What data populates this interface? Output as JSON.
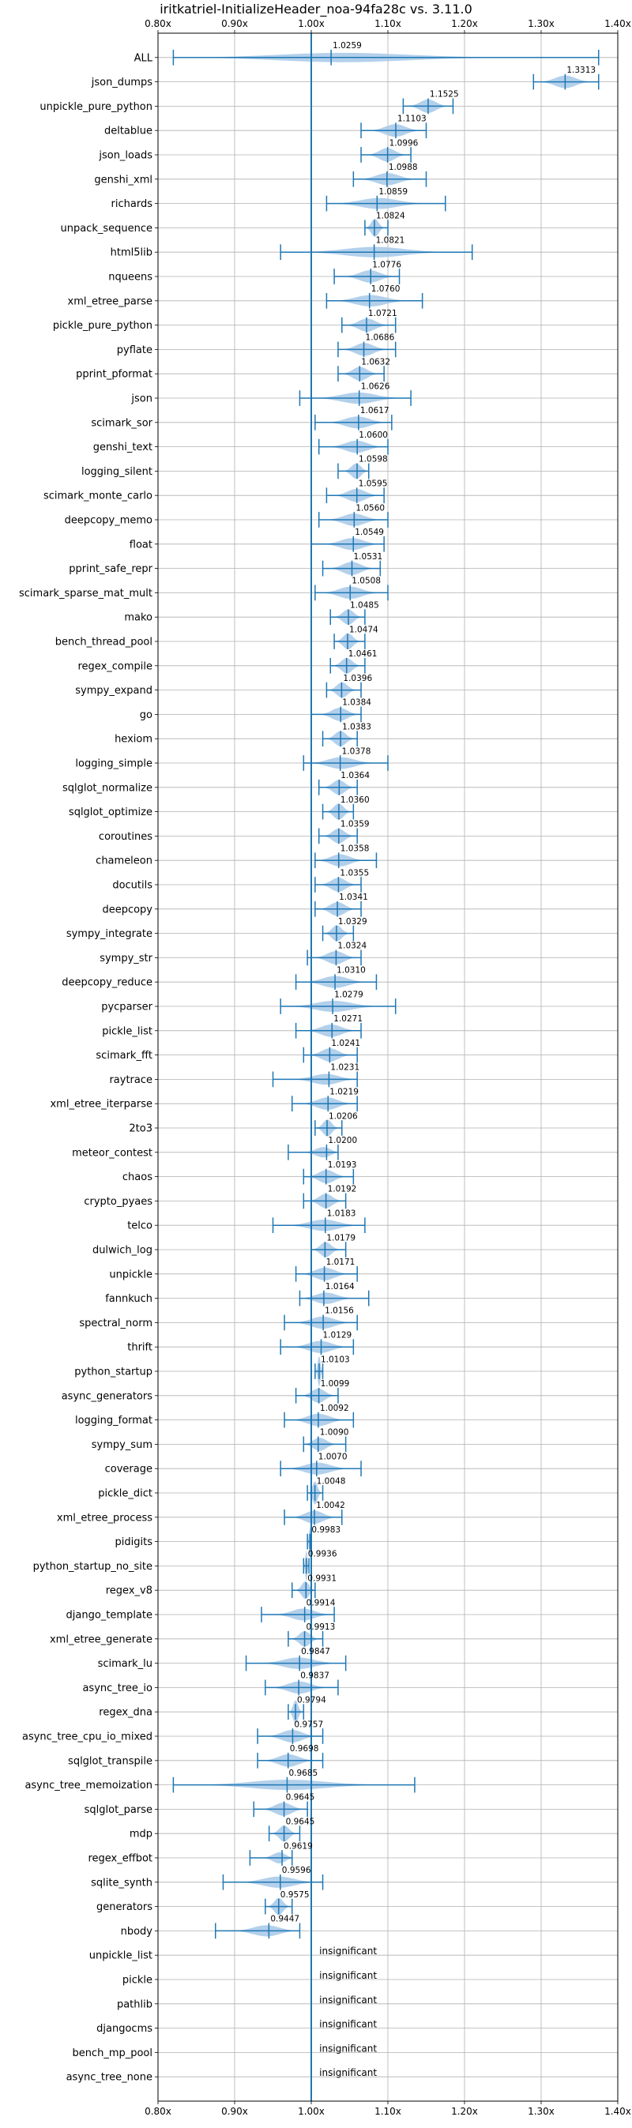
{
  "chart_data": {
    "type": "violin",
    "title": "iritkatriel-InitializeHeader_noa-94fa28c vs. 3.11.0",
    "xlim": [
      0.8,
      1.4
    ],
    "x_ticks": [
      "0.80x",
      "0.90x",
      "1.00x",
      "1.10x",
      "1.20x",
      "1.30x",
      "1.40x"
    ],
    "x_tick_values": [
      0.8,
      0.9,
      1.0,
      1.1,
      1.2,
      1.3,
      1.4
    ],
    "baseline": 1.0,
    "grid": true,
    "accent_color": "#1f77b4",
    "violin_fill": "#a6c8e8",
    "benchmarks": [
      {
        "name": "ALL",
        "label": "1.0259",
        "mean": 1.0259,
        "min": 0.82,
        "max": 1.375
      },
      {
        "name": "json_dumps",
        "label": "1.3313",
        "mean": 1.3313,
        "min": 1.29,
        "max": 1.375
      },
      {
        "name": "unpickle_pure_python",
        "label": "1.1525",
        "mean": 1.1525,
        "min": 1.12,
        "max": 1.185
      },
      {
        "name": "deltablue",
        "label": "1.1103",
        "mean": 1.1103,
        "min": 1.065,
        "max": 1.15
      },
      {
        "name": "json_loads",
        "label": "1.0996",
        "mean": 1.0996,
        "min": 1.065,
        "max": 1.13
      },
      {
        "name": "genshi_xml",
        "label": "1.0988",
        "mean": 1.0988,
        "min": 1.055,
        "max": 1.15
      },
      {
        "name": "richards",
        "label": "1.0859",
        "mean": 1.0859,
        "min": 1.02,
        "max": 1.175
      },
      {
        "name": "unpack_sequence",
        "label": "1.0824",
        "mean": 1.0824,
        "min": 1.07,
        "max": 1.1
      },
      {
        "name": "html5lib",
        "label": "1.0821",
        "mean": 1.0821,
        "min": 0.96,
        "max": 1.21
      },
      {
        "name": "nqueens",
        "label": "1.0776",
        "mean": 1.0776,
        "min": 1.03,
        "max": 1.115
      },
      {
        "name": "xml_etree_parse",
        "label": "1.0760",
        "mean": 1.076,
        "min": 1.02,
        "max": 1.145
      },
      {
        "name": "pickle_pure_python",
        "label": "1.0721",
        "mean": 1.0721,
        "min": 1.04,
        "max": 1.11
      },
      {
        "name": "pyflate",
        "label": "1.0686",
        "mean": 1.0686,
        "min": 1.035,
        "max": 1.11
      },
      {
        "name": "pprint_pformat",
        "label": "1.0632",
        "mean": 1.0632,
        "min": 1.035,
        "max": 1.095
      },
      {
        "name": "json",
        "label": "1.0626",
        "mean": 1.0626,
        "min": 0.985,
        "max": 1.13
      },
      {
        "name": "scimark_sor",
        "label": "1.0617",
        "mean": 1.0617,
        "min": 1.005,
        "max": 1.105
      },
      {
        "name": "genshi_text",
        "label": "1.0600",
        "mean": 1.06,
        "min": 1.01,
        "max": 1.1
      },
      {
        "name": "logging_silent",
        "label": "1.0598",
        "mean": 1.0598,
        "min": 1.035,
        "max": 1.075
      },
      {
        "name": "scimark_monte_carlo",
        "label": "1.0595",
        "mean": 1.0595,
        "min": 1.02,
        "max": 1.095
      },
      {
        "name": "deepcopy_memo",
        "label": "1.0560",
        "mean": 1.056,
        "min": 1.01,
        "max": 1.1
      },
      {
        "name": "float",
        "label": "1.0549",
        "mean": 1.0549,
        "min": 1.0,
        "max": 1.095
      },
      {
        "name": "pprint_safe_repr",
        "label": "1.0531",
        "mean": 1.0531,
        "min": 1.015,
        "max": 1.09
      },
      {
        "name": "scimark_sparse_mat_mult",
        "label": "1.0508",
        "mean": 1.0508,
        "min": 1.005,
        "max": 1.1
      },
      {
        "name": "mako",
        "label": "1.0485",
        "mean": 1.0485,
        "min": 1.025,
        "max": 1.07
      },
      {
        "name": "bench_thread_pool",
        "label": "1.0474",
        "mean": 1.0474,
        "min": 1.03,
        "max": 1.07
      },
      {
        "name": "regex_compile",
        "label": "1.0461",
        "mean": 1.0461,
        "min": 1.025,
        "max": 1.07
      },
      {
        "name": "sympy_expand",
        "label": "1.0396",
        "mean": 1.0396,
        "min": 1.02,
        "max": 1.065
      },
      {
        "name": "go",
        "label": "1.0384",
        "mean": 1.0384,
        "min": 1.0,
        "max": 1.065
      },
      {
        "name": "hexiom",
        "label": "1.0383",
        "mean": 1.0383,
        "min": 1.015,
        "max": 1.06
      },
      {
        "name": "logging_simple",
        "label": "1.0378",
        "mean": 1.0378,
        "min": 0.99,
        "max": 1.1
      },
      {
        "name": "sqlglot_normalize",
        "label": "1.0364",
        "mean": 1.0364,
        "min": 1.01,
        "max": 1.06
      },
      {
        "name": "sqlglot_optimize",
        "label": "1.0360",
        "mean": 1.036,
        "min": 1.015,
        "max": 1.055
      },
      {
        "name": "coroutines",
        "label": "1.0359",
        "mean": 1.0359,
        "min": 1.01,
        "max": 1.06
      },
      {
        "name": "chameleon",
        "label": "1.0358",
        "mean": 1.0358,
        "min": 1.005,
        "max": 1.085
      },
      {
        "name": "docutils",
        "label": "1.0355",
        "mean": 1.0355,
        "min": 1.005,
        "max": 1.065
      },
      {
        "name": "deepcopy",
        "label": "1.0341",
        "mean": 1.0341,
        "min": 1.005,
        "max": 1.065
      },
      {
        "name": "sympy_integrate",
        "label": "1.0329",
        "mean": 1.0329,
        "min": 1.015,
        "max": 1.055
      },
      {
        "name": "sympy_str",
        "label": "1.0324",
        "mean": 1.0324,
        "min": 0.995,
        "max": 1.065
      },
      {
        "name": "deepcopy_reduce",
        "label": "1.0310",
        "mean": 1.031,
        "min": 0.98,
        "max": 1.085
      },
      {
        "name": "pycparser",
        "label": "1.0279",
        "mean": 1.0279,
        "min": 0.96,
        "max": 1.11
      },
      {
        "name": "pickle_list",
        "label": "1.0271",
        "mean": 1.0271,
        "min": 0.98,
        "max": 1.065
      },
      {
        "name": "scimark_fft",
        "label": "1.0241",
        "mean": 1.0241,
        "min": 0.99,
        "max": 1.06
      },
      {
        "name": "raytrace",
        "label": "1.0231",
        "mean": 1.0231,
        "min": 0.95,
        "max": 1.06
      },
      {
        "name": "xml_etree_iterparse",
        "label": "1.0219",
        "mean": 1.0219,
        "min": 0.975,
        "max": 1.06
      },
      {
        "name": "2to3",
        "label": "1.0206",
        "mean": 1.0206,
        "min": 1.005,
        "max": 1.04
      },
      {
        "name": "meteor_contest",
        "label": "1.0200",
        "mean": 1.02,
        "min": 0.97,
        "max": 1.035
      },
      {
        "name": "chaos",
        "label": "1.0193",
        "mean": 1.0193,
        "min": 0.99,
        "max": 1.055
      },
      {
        "name": "crypto_pyaes",
        "label": "1.0192",
        "mean": 1.0192,
        "min": 0.99,
        "max": 1.045
      },
      {
        "name": "telco",
        "label": "1.0183",
        "mean": 1.0183,
        "min": 0.95,
        "max": 1.07
      },
      {
        "name": "dulwich_log",
        "label": "1.0179",
        "mean": 1.0179,
        "min": 1.0,
        "max": 1.045
      },
      {
        "name": "unpickle",
        "label": "1.0171",
        "mean": 1.0171,
        "min": 0.98,
        "max": 1.06
      },
      {
        "name": "fannkuch",
        "label": "1.0164",
        "mean": 1.0164,
        "min": 0.985,
        "max": 1.075
      },
      {
        "name": "spectral_norm",
        "label": "1.0156",
        "mean": 1.0156,
        "min": 0.965,
        "max": 1.06
      },
      {
        "name": "thrift",
        "label": "1.0129",
        "mean": 1.0129,
        "min": 0.96,
        "max": 1.055
      },
      {
        "name": "python_startup",
        "label": "1.0103",
        "mean": 1.0103,
        "min": 1.005,
        "max": 1.015
      },
      {
        "name": "async_generators",
        "label": "1.0099",
        "mean": 1.0099,
        "min": 0.98,
        "max": 1.035
      },
      {
        "name": "logging_format",
        "label": "1.0092",
        "mean": 1.0092,
        "min": 0.965,
        "max": 1.055
      },
      {
        "name": "sympy_sum",
        "label": "1.0090",
        "mean": 1.009,
        "min": 0.99,
        "max": 1.045
      },
      {
        "name": "coverage",
        "label": "1.0070",
        "mean": 1.007,
        "min": 0.96,
        "max": 1.065
      },
      {
        "name": "pickle_dict",
        "label": "1.0048",
        "mean": 1.0048,
        "min": 0.995,
        "max": 1.015
      },
      {
        "name": "xml_etree_process",
        "label": "1.0042",
        "mean": 1.0042,
        "min": 0.965,
        "max": 1.04
      },
      {
        "name": "pidigits",
        "label": "0.9983",
        "mean": 0.9983,
        "min": 0.995,
        "max": 1.0
      },
      {
        "name": "python_startup_no_site",
        "label": "0.9936",
        "mean": 0.9936,
        "min": 0.99,
        "max": 0.997
      },
      {
        "name": "regex_v8",
        "label": "0.9931",
        "mean": 0.9931,
        "min": 0.975,
        "max": 1.005
      },
      {
        "name": "django_template",
        "label": "0.9914",
        "mean": 0.9914,
        "min": 0.935,
        "max": 1.03
      },
      {
        "name": "xml_etree_generate",
        "label": "0.9913",
        "mean": 0.9913,
        "min": 0.97,
        "max": 1.015
      },
      {
        "name": "scimark_lu",
        "label": "0.9847",
        "mean": 0.9847,
        "min": 0.915,
        "max": 1.045
      },
      {
        "name": "async_tree_io",
        "label": "0.9837",
        "mean": 0.9837,
        "min": 0.94,
        "max": 1.035
      },
      {
        "name": "regex_dna",
        "label": "0.9794",
        "mean": 0.9794,
        "min": 0.97,
        "max": 0.99
      },
      {
        "name": "async_tree_cpu_io_mixed",
        "label": "0.9757",
        "mean": 0.9757,
        "min": 0.93,
        "max": 1.015
      },
      {
        "name": "sqlglot_transpile",
        "label": "0.9698",
        "mean": 0.9698,
        "min": 0.93,
        "max": 1.015
      },
      {
        "name": "async_tree_memoization",
        "label": "0.9685",
        "mean": 0.9685,
        "min": 0.82,
        "max": 1.135
      },
      {
        "name": "sqlglot_parse",
        "label": "0.9645",
        "mean": 0.9645,
        "min": 0.925,
        "max": 0.995
      },
      {
        "name": "mdp",
        "label": "0.9645",
        "mean": 0.9645,
        "min": 0.945,
        "max": 0.985
      },
      {
        "name": "regex_effbot",
        "label": "0.9619",
        "mean": 0.9619,
        "min": 0.92,
        "max": 0.975
      },
      {
        "name": "sqlite_synth",
        "label": "0.9596",
        "mean": 0.9596,
        "min": 0.885,
        "max": 1.015
      },
      {
        "name": "generators",
        "label": "0.9575",
        "mean": 0.9575,
        "min": 0.94,
        "max": 0.975
      },
      {
        "name": "nbody",
        "label": "0.9447",
        "mean": 0.9447,
        "min": 0.875,
        "max": 0.985
      },
      {
        "name": "unpickle_list",
        "label": "insignificant"
      },
      {
        "name": "pickle",
        "label": "insignificant"
      },
      {
        "name": "pathlib",
        "label": "insignificant"
      },
      {
        "name": "djangocms",
        "label": "insignificant"
      },
      {
        "name": "bench_mp_pool",
        "label": "insignificant"
      },
      {
        "name": "async_tree_none",
        "label": "insignificant"
      }
    ]
  }
}
